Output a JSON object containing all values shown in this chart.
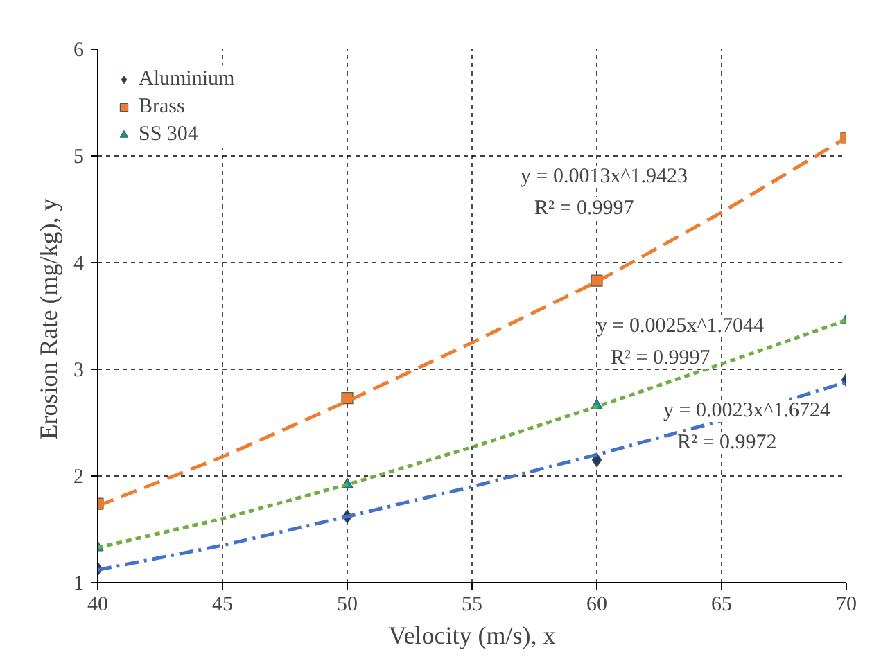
{
  "chart_data": {
    "type": "scatter",
    "xlabel": "Velocity (m/s), x",
    "ylabel": "Erosion Rate (mg/kg),  y",
    "xlim": [
      40,
      70
    ],
    "xticks": [
      40,
      45,
      50,
      55,
      60,
      65,
      70
    ],
    "ylim": [
      1,
      6
    ],
    "yticks": [
      1,
      2,
      3,
      4,
      5,
      6
    ],
    "grid": true,
    "legend": "top left",
    "series": [
      {
        "name": "Aluminium",
        "marker": "diamond",
        "color": "#1f3864",
        "x": [
          40,
          50,
          60,
          70
        ],
        "values": [
          1.13,
          1.62,
          2.15,
          2.9
        ]
      },
      {
        "name": "Brass",
        "marker": "square",
        "color": "#ed7d31",
        "x": [
          40,
          50,
          60,
          70
        ],
        "values": [
          1.74,
          2.73,
          3.83,
          5.17
        ]
      },
      {
        "name": "SS 304",
        "marker": "triangle",
        "color": "#00a0a0",
        "x": [
          40,
          50,
          60,
          70
        ],
        "values": [
          1.33,
          1.92,
          2.66,
          3.46
        ]
      },
      {
        "type": "line",
        "line_style": "dashdot",
        "color": "#4472c4",
        "x": [
          40,
          45,
          50,
          55,
          60,
          65,
          70
        ],
        "values": [
          1.12,
          1.35,
          1.62,
          1.9,
          2.2,
          2.52,
          2.88
        ]
      },
      {
        "type": "line",
        "line_style": "dashed",
        "color": "#ed7d31",
        "x": [
          40,
          45,
          50,
          55,
          60,
          65,
          70
        ],
        "values": [
          1.72,
          2.18,
          2.7,
          3.25,
          3.82,
          4.47,
          5.17
        ]
      },
      {
        "type": "line",
        "line_style": "dotted",
        "color": "#70ad47",
        "x": [
          40,
          45,
          50,
          55,
          60,
          65,
          70
        ],
        "values": [
          1.33,
          1.6,
          1.92,
          2.27,
          2.65,
          3.05,
          3.46
        ]
      }
    ],
    "annotations": [
      "y = 0.0013x^1.9423",
      "R² = 0.9997",
      "y = 0.0025x^1.7044",
      "R² = 0.9997",
      "y = 0.0023x^1.6724",
      "R² = 0.9972"
    ]
  }
}
